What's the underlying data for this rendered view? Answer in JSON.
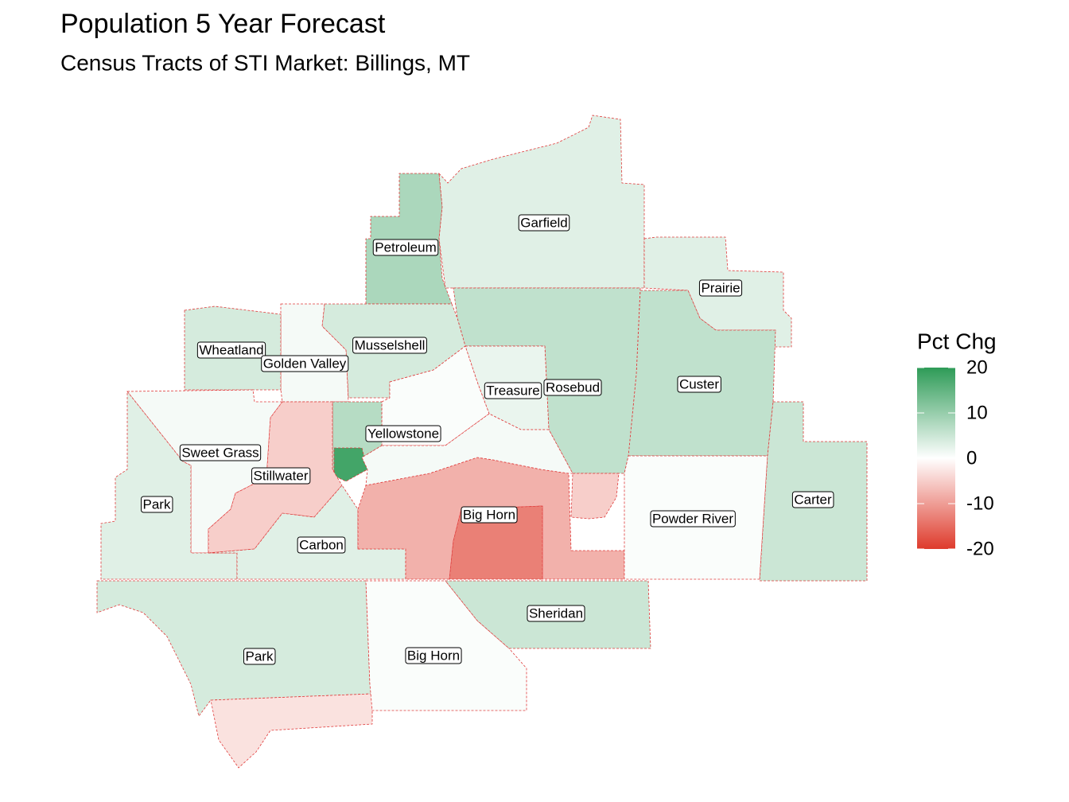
{
  "chart_data": {
    "type": "choropleth",
    "title": "Population 5 Year Forecast",
    "subtitle": "Census Tracts of STI Market: Billings, MT",
    "legend_title": "Pct Chg",
    "colors": {
      "low": "#de3b2c",
      "mid": "#ffffff",
      "high": "#2e9b57"
    },
    "limits": [
      -20,
      20
    ],
    "legend_ticks": [
      20,
      10,
      0,
      -10,
      -20
    ],
    "tract_values": [
      8,
      3,
      3,
      6,
      6,
      -5,
      2,
      4,
      1,
      4,
      0.5,
      7,
      18,
      1,
      -5,
      3,
      3,
      -8,
      -13,
      0.5,
      5,
      1,
      4,
      -3,
      0.5,
      5
    ],
    "labels": [
      "Garfield",
      "Petroleum",
      "Prairie",
      "Musselshell",
      "Wheatland",
      "Golden Valley",
      "Custer",
      "Treasure",
      "Rosebud",
      "Yellowstone",
      "Sweet Grass",
      "Stillwater",
      "Park",
      "Big Horn",
      "Carter",
      "Powder River",
      "Carbon",
      "Sheridan",
      "Park",
      "Big Horn"
    ]
  }
}
